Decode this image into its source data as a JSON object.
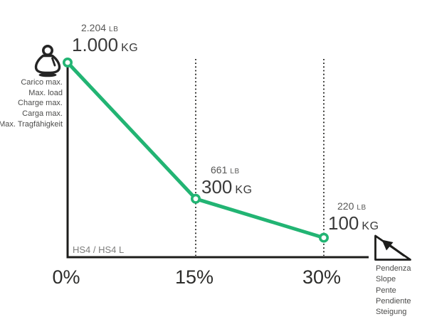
{
  "chart_data": {
    "type": "line",
    "title": "",
    "xlabel": "Slope (%)",
    "ylabel": "Max load (kg)",
    "x_ticks": [
      "0%",
      "15%",
      "30%"
    ],
    "x_range_percent": [
      0,
      30
    ],
    "y_range_kg": [
      0,
      1000
    ],
    "grid": "dotted vertical gridlines at 15% and 30%",
    "legend_position": "none",
    "line_color": "#22b473",
    "series": [
      {
        "name": "Max load vs slope",
        "x_percent": [
          0,
          15,
          30
        ],
        "kg": [
          1000,
          300,
          100
        ],
        "lb": [
          2204,
          661,
          220
        ]
      }
    ],
    "point_labels": [
      {
        "lb": "2.204",
        "lb_unit": "LB",
        "kg": "1.000",
        "kg_unit": "KG"
      },
      {
        "lb": "661",
        "lb_unit": "LB",
        "kg": "300",
        "kg_unit": "KG"
      },
      {
        "lb": "220",
        "lb_unit": "LB",
        "kg": "100",
        "kg_unit": "KG"
      }
    ],
    "model_label": "HS4 / HS4 L"
  },
  "y_legend": {
    "icon": "kettlebell-weight-icon",
    "lines": [
      "Carico max.",
      "Max. load",
      "Charge max.",
      "Carga max.",
      "Max. Tragfähigkeit"
    ]
  },
  "x_legend": {
    "icon": "slope-triangle-icon",
    "lines": [
      "Pendenza",
      "Slope",
      "Pente",
      "Pendiente",
      "Steigung"
    ]
  },
  "colors": {
    "line_green": "#22b473",
    "axis_black": "#1d1d1b",
    "kg_text": "#3a3a3a",
    "lb_text": "#575756",
    "legend_text": "#4c4c4b",
    "model_text": "#7d7d7c"
  }
}
